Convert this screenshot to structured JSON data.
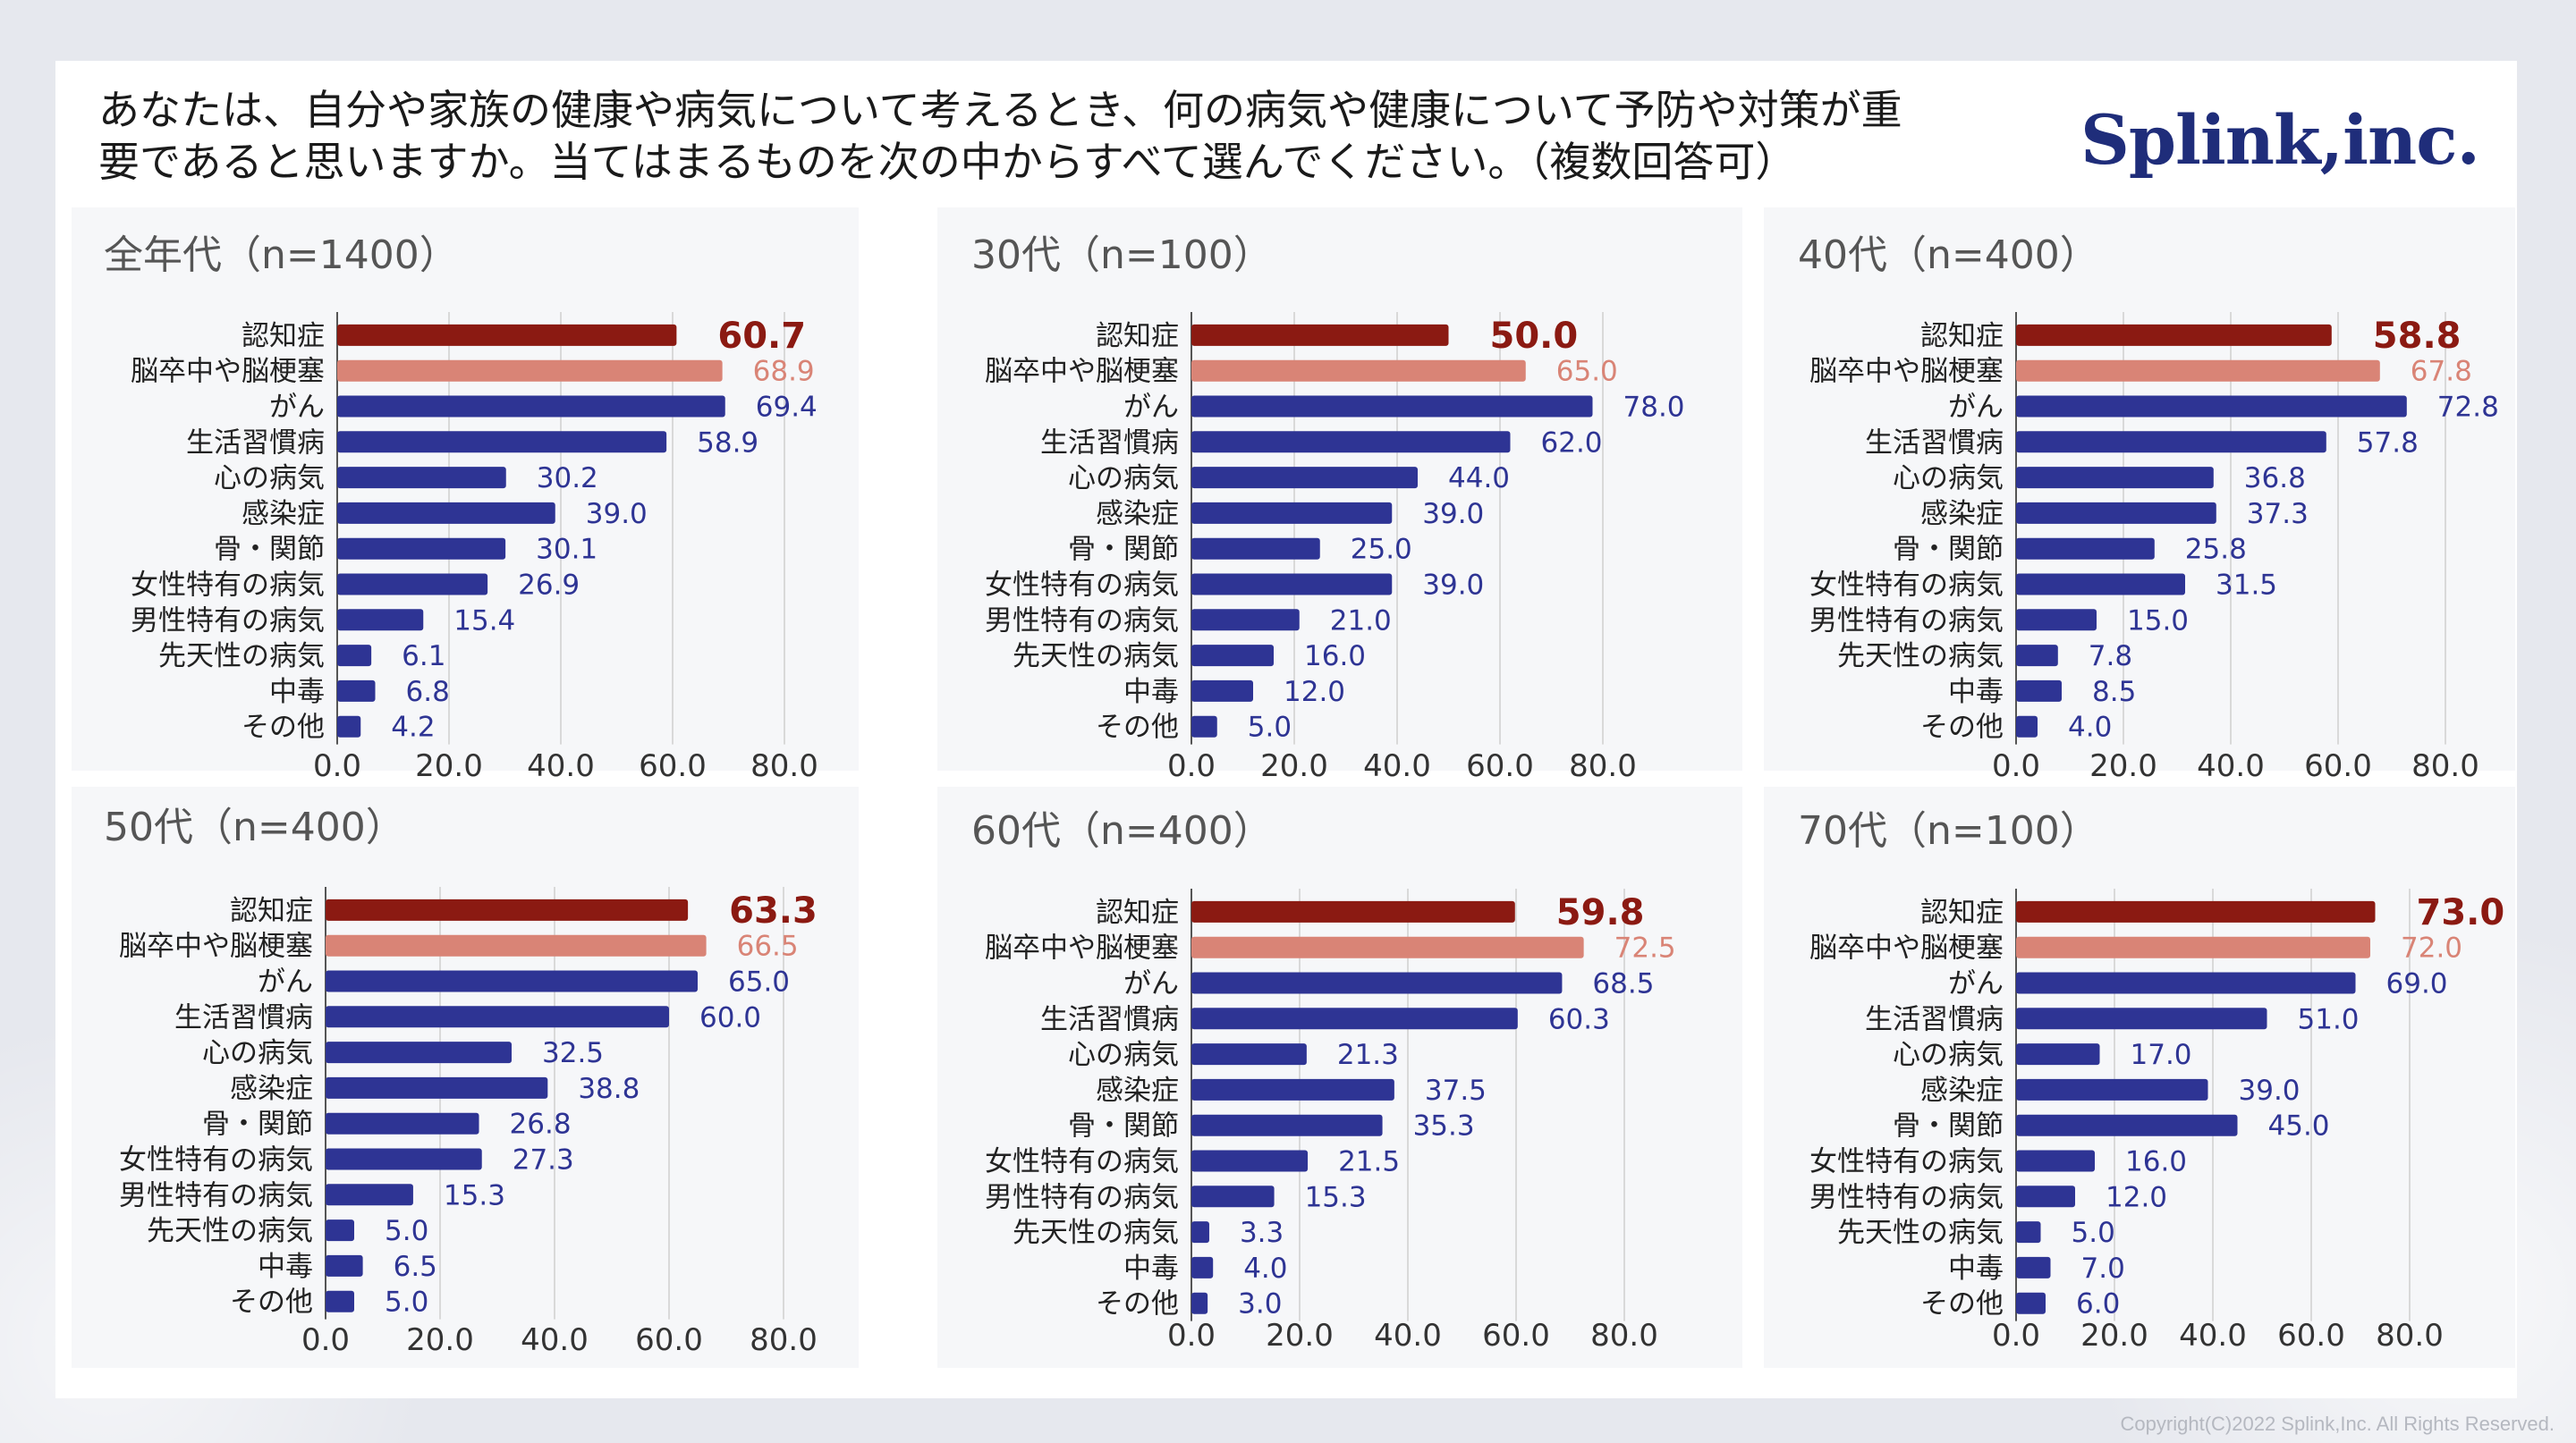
{
  "title_lines": [
    "あなたは、自分や家族の健康や病気について考えるとき、何の病気や健康について予防や対策が重",
    "要であると思いますか。当てはまるものを次の中からすべて選んでください。（複数回答可）"
  ],
  "logo": "Splink,inc.",
  "footer": "Copyright(C)2022 Splink,Inc. All Rights Reserved.",
  "colors": {
    "highlight": "#8b1a12",
    "secondary": "#d98476",
    "bar": "#2e3494",
    "label_secondary": "#d98476",
    "label_bar": "#2e3494",
    "gridline": "#d9d9d9",
    "panel_bg": "#f6f7f9"
  },
  "chart_data": [
    {
      "type": "bar",
      "orientation": "horizontal",
      "title": "全年代（n=1400）",
      "categories": [
        "認知症",
        "脳卒中や脳梗塞",
        "がん",
        "生活習慣病",
        "心の病気",
        "感染症",
        "骨・関節",
        "女性特有の病気",
        "男性特有の病気",
        "先天性の病気",
        "中毒",
        "その他"
      ],
      "values": [
        60.7,
        68.9,
        69.4,
        58.9,
        30.2,
        39.0,
        30.1,
        26.9,
        15.4,
        6.1,
        6.8,
        4.2
      ],
      "value_labels": [
        "60.7",
        "68.9",
        "69.4",
        "58.9",
        "30.2",
        "39.0",
        "30.1",
        "26.9",
        "15.4",
        "6.1",
        "6.8",
        "4.2"
      ],
      "xticks": [
        "0.0",
        "20.0",
        "40.0",
        "60.0",
        "80.0"
      ],
      "xlim": [
        0,
        80
      ]
    },
    {
      "type": "bar",
      "orientation": "horizontal",
      "title": "30代（n=100）",
      "categories": [
        "認知症",
        "脳卒中や脳梗塞",
        "がん",
        "生活習慣病",
        "心の病気",
        "感染症",
        "骨・関節",
        "女性特有の病気",
        "男性特有の病気",
        "先天性の病気",
        "中毒",
        "その他"
      ],
      "values": [
        50.0,
        65.0,
        78.0,
        62.0,
        44.0,
        39.0,
        25.0,
        39.0,
        21.0,
        16.0,
        12.0,
        5.0
      ],
      "value_labels": [
        "50.0",
        "65.0",
        "78.0",
        "62.0",
        "44.0",
        "39.0",
        "25.0",
        "39.0",
        "21.0",
        "16.0",
        "12.0",
        "5.0"
      ],
      "xticks": [
        "0.0",
        "20.0",
        "40.0",
        "60.0",
        "80.0"
      ],
      "xlim": [
        0,
        80
      ]
    },
    {
      "type": "bar",
      "orientation": "horizontal",
      "title": "40代（n=400）",
      "categories": [
        "認知症",
        "脳卒中や脳梗塞",
        "がん",
        "生活習慣病",
        "心の病気",
        "感染症",
        "骨・関節",
        "女性特有の病気",
        "男性特有の病気",
        "先天性の病気",
        "中毒",
        "その他"
      ],
      "values": [
        58.8,
        67.8,
        72.8,
        57.8,
        36.8,
        37.3,
        25.8,
        31.5,
        15.0,
        7.8,
        8.5,
        4.0
      ],
      "value_labels": [
        "58.8",
        "67.8",
        "72.8",
        "57.8",
        "36.8",
        "37.3",
        "25.8",
        "31.5",
        "15.0",
        "7.8",
        "8.5",
        "4.0"
      ],
      "xticks": [
        "0.0",
        "20.0",
        "40.0",
        "60.0",
        "80.0"
      ],
      "xlim": [
        0,
        80
      ]
    },
    {
      "type": "bar",
      "orientation": "horizontal",
      "title": "50代（n=400）",
      "categories": [
        "認知症",
        "脳卒中や脳梗塞",
        "がん",
        "生活習慣病",
        "心の病気",
        "感染症",
        "骨・関節",
        "女性特有の病気",
        "男性特有の病気",
        "先天性の病気",
        "中毒",
        "その他"
      ],
      "values": [
        63.3,
        66.5,
        65.0,
        60.0,
        32.5,
        38.8,
        26.8,
        27.3,
        15.3,
        5.0,
        6.5,
        5.0
      ],
      "value_labels": [
        "63.3",
        "66.5",
        "65.0",
        "60.0",
        "32.5",
        "38.8",
        "26.8",
        "27.3",
        "15.3",
        "5.0",
        "6.5",
        "5.0"
      ],
      "xticks": [
        "0.0",
        "20.0",
        "40.0",
        "60.0",
        "80.0"
      ],
      "xlim": [
        0,
        80
      ]
    },
    {
      "type": "bar",
      "orientation": "horizontal",
      "title": "60代（n=400）",
      "categories": [
        "認知症",
        "脳卒中や脳梗塞",
        "がん",
        "生活習慣病",
        "心の病気",
        "感染症",
        "骨・関節",
        "女性特有の病気",
        "男性特有の病気",
        "先天性の病気",
        "中毒",
        "その他"
      ],
      "values": [
        59.8,
        72.5,
        68.5,
        60.3,
        21.3,
        37.5,
        35.3,
        21.5,
        15.3,
        3.3,
        4.0,
        3.0
      ],
      "value_labels": [
        "59.8",
        "72.5",
        "68.5",
        "60.3",
        "21.3",
        "37.5",
        "35.3",
        "21.5",
        "15.3",
        "3.3",
        "4.0",
        "3.0"
      ],
      "xticks": [
        "0.0",
        "20.0",
        "40.0",
        "60.0",
        "80.0"
      ],
      "xlim": [
        0,
        80
      ]
    },
    {
      "type": "bar",
      "orientation": "horizontal",
      "title": "70代（n=100）",
      "categories": [
        "認知症",
        "脳卒中や脳梗塞",
        "がん",
        "生活習慣病",
        "心の病気",
        "感染症",
        "骨・関節",
        "女性特有の病気",
        "男性特有の病気",
        "先天性の病気",
        "中毒",
        "その他"
      ],
      "values": [
        73.0,
        72.0,
        69.0,
        51.0,
        17.0,
        39.0,
        45.0,
        16.0,
        12.0,
        5.0,
        7.0,
        6.0
      ],
      "value_labels": [
        "73.0",
        "72.0",
        "69.0",
        "51.0",
        "17.0",
        "39.0",
        "45.0",
        "16.0",
        "12.0",
        "5.0",
        "7.0",
        "6.0"
      ],
      "xticks": [
        "0.0",
        "20.0",
        "40.0",
        "60.0",
        "80.0"
      ],
      "xlim": [
        0,
        80
      ]
    }
  ]
}
